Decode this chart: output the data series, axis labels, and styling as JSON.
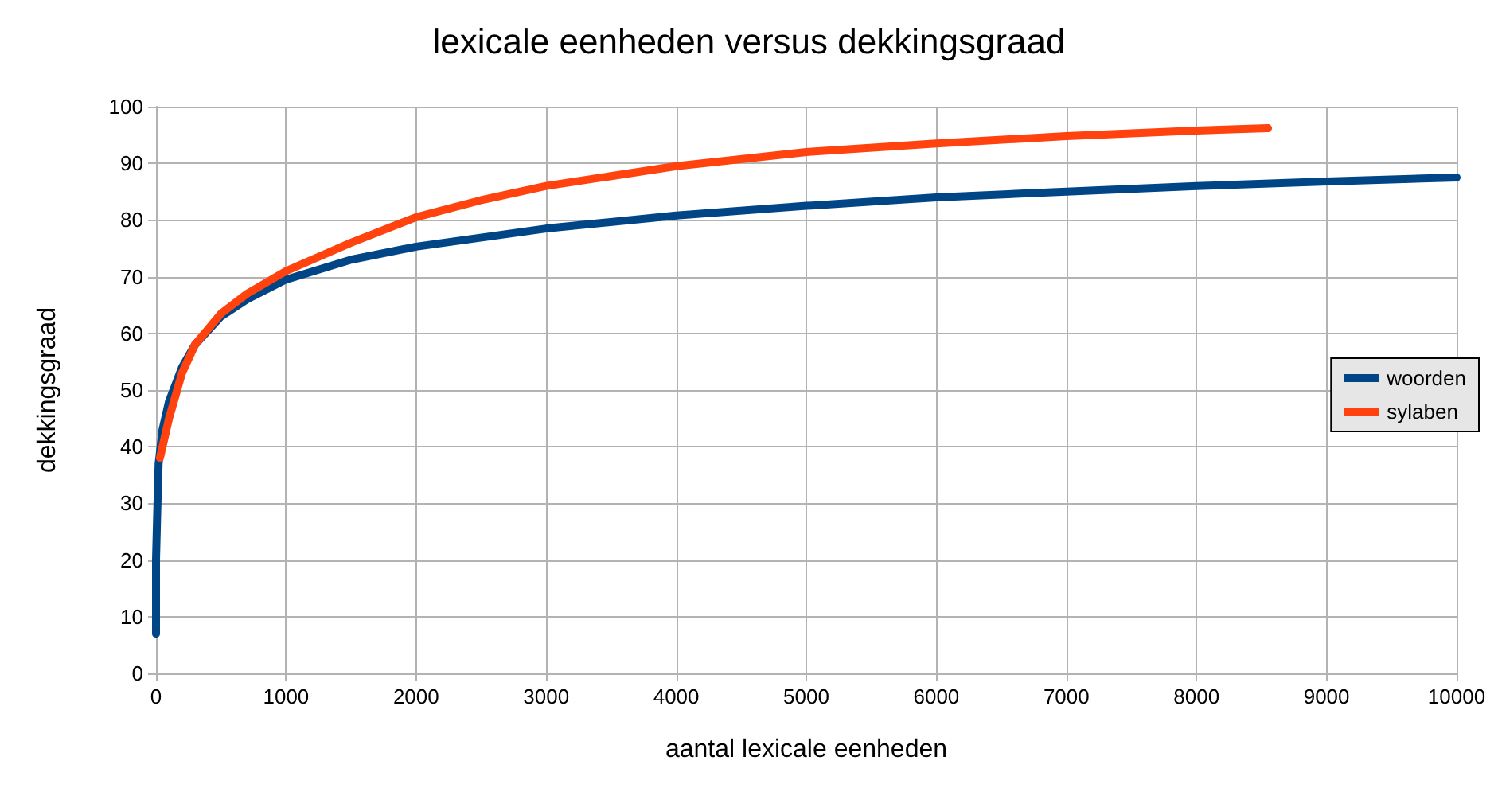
{
  "chart_data": {
    "type": "line",
    "title": "lexicale eenheden versus dekkingsgraad",
    "xlabel": "aantal lexicale eenheden",
    "ylabel": "dekkingsgraad",
    "series": [
      {
        "name": "woorden",
        "color": "#004586",
        "x": [
          0,
          0,
          10,
          20,
          50,
          100,
          200,
          300,
          500,
          700,
          1000,
          1500,
          2000,
          3000,
          4000,
          5000,
          6000,
          7000,
          8000,
          9000,
          10000
        ],
        "values": [
          7,
          20,
          29,
          37,
          43,
          48,
          54,
          58,
          63,
          66,
          69.5,
          73,
          75.3,
          78.5,
          80.8,
          82.5,
          84,
          85,
          86,
          86.8,
          87.5
        ]
      },
      {
        "name": "sylaben",
        "color": "#ff420e",
        "x": [
          30,
          100,
          200,
          300,
          500,
          700,
          1000,
          1500,
          2000,
          2500,
          3000,
          4000,
          5000,
          6000,
          7000,
          8000,
          8550
        ],
        "values": [
          38,
          45,
          53,
          58,
          63.5,
          67,
          71,
          76,
          80.5,
          83.5,
          86,
          89.5,
          92,
          93.5,
          94.8,
          95.8,
          96.2
        ]
      }
    ],
    "xlim": [
      0,
      10000
    ],
    "xticks": [
      0,
      1000,
      2000,
      3000,
      4000,
      5000,
      6000,
      7000,
      8000,
      9000,
      10000
    ],
    "ylim": [
      0,
      100
    ],
    "yticks": [
      0,
      10,
      20,
      30,
      40,
      50,
      60,
      70,
      80,
      90,
      100
    ],
    "grid": true,
    "legend": "right",
    "marker": "none",
    "line_style": "solid"
  }
}
